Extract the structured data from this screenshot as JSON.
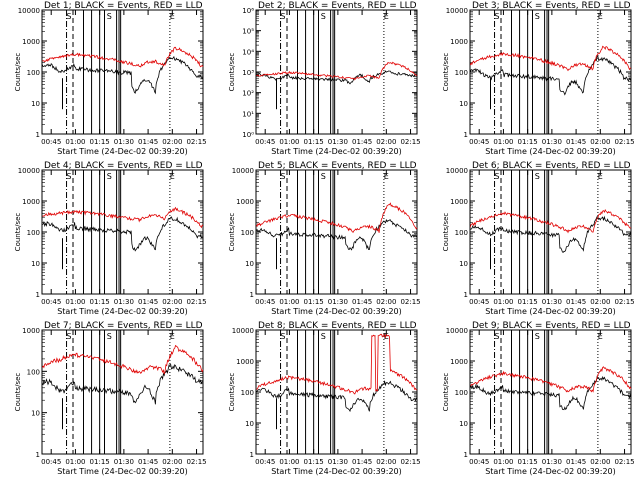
{
  "chart_data": {
    "type": "line",
    "layout": "3x3 grid of log-scale time series panels",
    "x_label": "Start Time (24-Dec-02 00:39:20)",
    "x_range_minutes": [
      39.3,
      139
    ],
    "x_ticks": [
      {
        "label": "00:45",
        "min": 45
      },
      {
        "label": "01:00",
        "min": 60
      },
      {
        "label": "01:15",
        "min": 75
      },
      {
        "label": "01:30",
        "min": 90
      },
      {
        "label": "01:45",
        "min": 105
      },
      {
        "label": "02:00",
        "min": 120
      },
      {
        "label": "02:15",
        "min": 135
      }
    ],
    "y_label": "Counts/sec",
    "legend": "BLACK = Events, RED = LLD",
    "series_colors": {
      "events": "#000000",
      "lld": "#e00000"
    },
    "markers_minutes": {
      "dash_dot": [
        54.5
      ],
      "dashed": [
        58.5
      ],
      "solid": [
        65,
        70,
        75,
        78,
        85.5,
        87,
        88
      ],
      "dotted": [
        118.5
      ]
    },
    "flags": [
      {
        "label": "S",
        "min": 56
      },
      {
        "label": "S",
        "min": 81
      },
      {
        "label": "E",
        "min": 120
      }
    ],
    "panels": [
      {
        "title": "Det 1",
        "y_min_exp": 0,
        "y_max_exp": 4,
        "y_ticks": [
          "1",
          "10",
          "100",
          "1000",
          "10000"
        ],
        "events": {
          "base": 140,
          "end": 70,
          "peak": 250,
          "dip": 40
        },
        "lld": {
          "base": 220,
          "peak": 380,
          "flare": 600,
          "end": 150
        }
      },
      {
        "title": "Det 2",
        "y_min_exp": 0,
        "y_max_exp": 6,
        "y_ticks": [
          "10⁰",
          "10¹",
          "10²",
          "10³",
          "10⁴",
          "10⁵",
          "10⁶"
        ],
        "events": {
          "base": 600,
          "end": 700,
          "peak": 900,
          "dip": 500
        },
        "lld": {
          "base": 650,
          "peak": 950,
          "flare": 3000,
          "end": 750
        }
      },
      {
        "title": "Det 3",
        "y_min_exp": 0,
        "y_max_exp": 4,
        "y_ticks": [
          "1",
          "10",
          "100",
          "1000",
          "10000"
        ],
        "events": {
          "base": 90,
          "end": 60,
          "peak": 250,
          "dip": 35
        },
        "lld": {
          "base": 180,
          "peak": 400,
          "flare": 650,
          "end": 130
        }
      },
      {
        "title": "Det 4",
        "y_min_exp": 0,
        "y_max_exp": 4,
        "y_ticks": [
          "1",
          "10",
          "100",
          "1000",
          "10000"
        ],
        "events": {
          "base": 150,
          "end": 70,
          "peak": 250,
          "dip": 45
        },
        "lld": {
          "base": 350,
          "peak": 450,
          "flare": 550,
          "end": 150
        }
      },
      {
        "title": "Det 5",
        "y_min_exp": 0,
        "y_max_exp": 4,
        "y_ticks": [
          "1",
          "10",
          "100",
          "1000",
          "10000"
        ],
        "events": {
          "base": 100,
          "end": 80,
          "peak": 200,
          "dip": 45
        },
        "lld": {
          "base": 150,
          "peak": 350,
          "flare": 800,
          "end": 130
        }
      },
      {
        "title": "Det 6",
        "y_min_exp": 0,
        "y_max_exp": 4,
        "y_ticks": [
          "1",
          "10",
          "100",
          "1000",
          "10000"
        ],
        "events": {
          "base": 120,
          "end": 80,
          "peak": 250,
          "dip": 40
        },
        "lld": {
          "base": 150,
          "peak": 400,
          "flare": 500,
          "end": 130
        }
      },
      {
        "title": "Det 7",
        "y_min_exp": 0,
        "y_max_exp": 3,
        "y_ticks": [
          "1",
          "10",
          "100",
          "1000"
        ],
        "events": {
          "base": 45,
          "end": 60,
          "peak": 120,
          "dip": 30
        },
        "lld": {
          "base": 130,
          "peak": 250,
          "flare": 380,
          "end": 110
        }
      },
      {
        "title": "Det 8",
        "y_min_exp": 0,
        "y_max_exp": 4,
        "y_ticks": [
          "1",
          "10",
          "100",
          "1000",
          "10000"
        ],
        "events": {
          "base": 100,
          "end": 60,
          "peak": 180,
          "dip": 45
        },
        "lld": {
          "base": 130,
          "peak": 300,
          "flare": 500,
          "end": 120
        },
        "lld_spikes": [
          {
            "from": 111,
            "to": 113,
            "level": 7000
          },
          {
            "from": 115,
            "to": 122,
            "level": 6500
          }
        ]
      },
      {
        "title": "Det 9",
        "y_min_exp": 0,
        "y_max_exp": 4,
        "y_ticks": [
          "1",
          "10",
          "100",
          "1000",
          "10000"
        ],
        "events": {
          "base": 120,
          "end": 70,
          "peak": 250,
          "dip": 45
        },
        "lld": {
          "base": 150,
          "peak": 400,
          "flare": 600,
          "end": 140
        }
      }
    ]
  }
}
